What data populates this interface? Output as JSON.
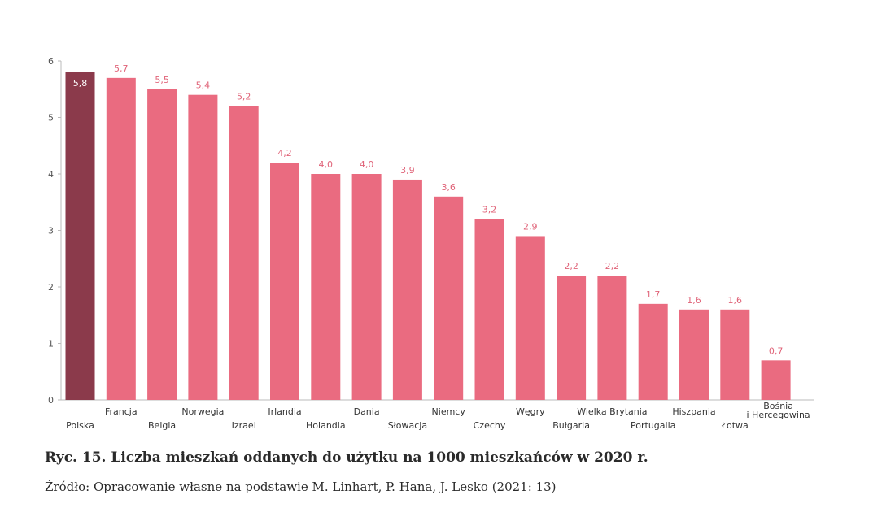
{
  "chart_data": {
    "type": "bar",
    "categories": [
      "Polska",
      "Francja",
      "Belgia",
      "Norwegia",
      "Izrael",
      "Irlandia",
      "Holandia",
      "Dania",
      "Słowacja",
      "Niemcy",
      "Czechy",
      "Węgry",
      "Bułgaria",
      "Wielka Brytania",
      "Portugalia",
      "Hiszpania",
      "Łotwa",
      "Bośnia i Hercegowina"
    ],
    "values": [
      5.8,
      5.7,
      5.5,
      5.4,
      5.2,
      4.2,
      4.0,
      4.0,
      3.9,
      3.6,
      3.2,
      2.9,
      2.2,
      2.2,
      1.7,
      1.6,
      1.6,
      0.7
    ],
    "value_labels": [
      "5,8",
      "5,7",
      "5,5",
      "5,4",
      "5,2",
      "4,2",
      "4,0",
      "4,0",
      "3,9",
      "3,6",
      "3,2",
      "2,9",
      "2,2",
      "2,2",
      "1,7",
      "1,6",
      "1,6",
      "0,7"
    ],
    "yticks": [
      0,
      1,
      2,
      3,
      4,
      5,
      6
    ],
    "ylim": [
      0,
      6
    ],
    "grid": false,
    "legend": "none",
    "colors": {
      "highlight": "#8b3a4b",
      "bar": "#ea6b80",
      "value_label": "#e06479",
      "highlight_label": "#ffffff",
      "axis": "#bbbbbb"
    },
    "highlight_index": 0
  },
  "caption": {
    "title": "Ryc. 15. Liczba mieszkań oddanych do użytku na 1000 mieszkańców w 2020 r.",
    "source": "Źródło: Opracowanie własne na podstawie M. Linhart, P. Hana, J. Lesko (2021: 13)"
  }
}
